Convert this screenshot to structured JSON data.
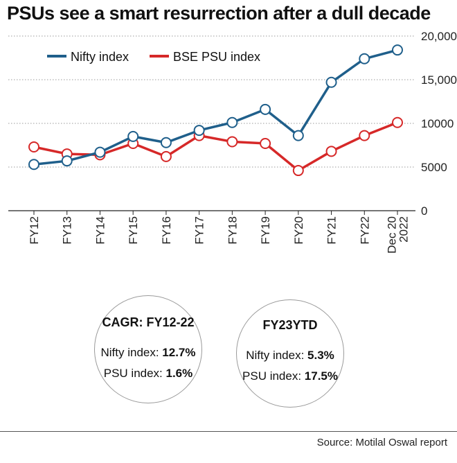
{
  "title": "PSUs see a smart resurrection after a dull decade",
  "chart_data": {
    "type": "line",
    "categories": [
      "FY12",
      "FY13",
      "FY14",
      "FY15",
      "FY16",
      "FY17",
      "FY18",
      "FY19",
      "FY20",
      "FY21",
      "FY22",
      "Dec 20 2022"
    ],
    "category_lines": [
      [
        "FY12"
      ],
      [
        "FY13"
      ],
      [
        "FY14"
      ],
      [
        "FY15"
      ],
      [
        "FY16"
      ],
      [
        "FY17"
      ],
      [
        "FY18"
      ],
      [
        "FY19"
      ],
      [
        "FY20"
      ],
      [
        "FY21"
      ],
      [
        "FY22"
      ],
      [
        "Dec 20",
        "2022"
      ]
    ],
    "series": [
      {
        "name": "Nifty index",
        "color": "#1f5f8b",
        "values": [
          5300,
          5700,
          6700,
          8500,
          7800,
          9200,
          10100,
          11600,
          8600,
          14700,
          17400,
          18400
        ]
      },
      {
        "name": "BSE PSU index",
        "color": "#d62828",
        "values": [
          7300,
          6500,
          6400,
          7700,
          6200,
          8600,
          7900,
          7700,
          4600,
          6800,
          8600,
          10100
        ]
      }
    ],
    "ylim": [
      0,
      20000
    ],
    "y_ticks": [
      0,
      5000,
      10000,
      15000,
      20000
    ],
    "y_tick_labels": [
      "0",
      "5000",
      "10000",
      "15,000",
      "20,000"
    ],
    "y_axis_side": "right",
    "grid": "horizontal dotted",
    "legend_position": "top-left"
  },
  "stats": {
    "cagr": {
      "heading": "CAGR: FY12-22",
      "nifty_label": "Nifty index: ",
      "nifty_value": "12.7%",
      "psu_label": "PSU index: ",
      "psu_value": "1.6%"
    },
    "ytd": {
      "heading": "FY23YTD",
      "nifty_label": "Nifty index: ",
      "nifty_value": "5.3%",
      "psu_label": "PSU index: ",
      "psu_value": "17.5%"
    }
  },
  "source": "Source: Motilal Oswal report"
}
